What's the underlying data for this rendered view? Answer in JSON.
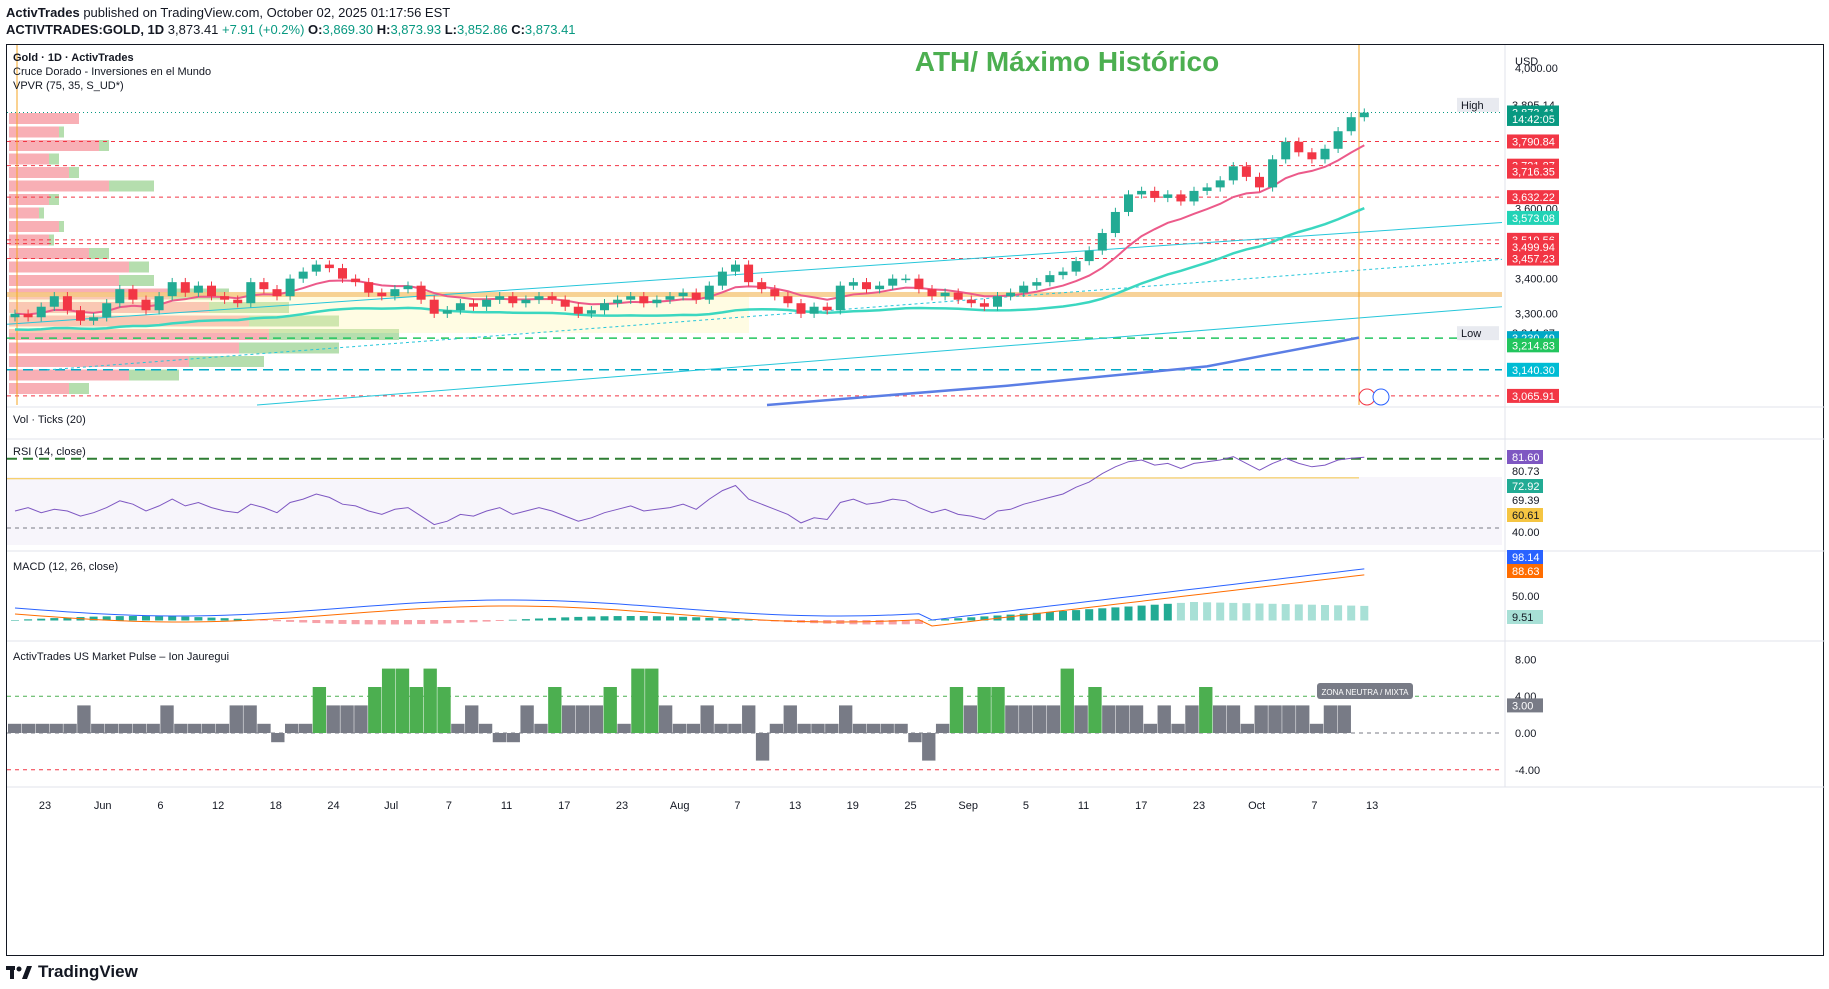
{
  "header": {
    "publisher": "ActivTrades",
    "published_text": "published on TradingView.com, October 02, 2025 01:17:56 EST",
    "symbol": "ACTIVTRADES:GOLD, 1D",
    "price": "3,873.41",
    "change": "+7.91 (+0.2%)",
    "o_label": "O:",
    "o_val": "3,869.30",
    "h_label": "H:",
    "h_val": "3,873.93",
    "l_label": "L:",
    "l_val": "3,852.86",
    "c_label": "C:",
    "c_val": "3,873.41"
  },
  "legend": {
    "line1": "Gold · 1D · ActivTrades",
    "line2": "Cruce Dorado - Inversiones en el Mundo",
    "line3": "VPVR (75, 35, S_UD*)",
    "vol": "Vol · Ticks (20)",
    "rsi": "RSI (14, close)",
    "macd": "MACD (12, 26, close)",
    "pulse": "ActivTrades US Market Pulse – Ion Jauregui"
  },
  "annotation": {
    "ath": "ATH/ Máximo Histórico",
    "zone": "ZONA NEUTRA / MIXTA"
  },
  "footer": {
    "logo_text": "TradingView"
  },
  "colors": {
    "up": "#22ab94",
    "down": "#f23645",
    "ema_pink": "#ec5a8a",
    "ema_teal": "#3bd7c0",
    "sma_blue": "#5b7ee5",
    "rsi": "#7e57c2",
    "macd_line": "#2962ff",
    "signal": "#ff6d00",
    "pulse_gray": "#787b86",
    "pulse_green": "#4caf50",
    "ath_text": "#4caf50"
  },
  "chart_data": [
    {
      "type": "candlestick",
      "title": "Gold · 1D · ActivTrades",
      "currency": "USD",
      "y_axis_ticks": [
        4000,
        3600,
        3400,
        3300
      ],
      "ylim": [
        3040,
        4060
      ],
      "x_tick_labels": [
        "23",
        "Jun",
        "6",
        "12",
        "18",
        "24",
        "Jul",
        "7",
        "11",
        "17",
        "23",
        "Aug",
        "7",
        "13",
        "19",
        "25",
        "Sep",
        "5",
        "11",
        "17",
        "23",
        "Oct",
        "7",
        "13"
      ],
      "price_labels": [
        {
          "label": "High",
          "value": "3,895.14"
        },
        {
          "label": "",
          "value": "3,873.41"
        },
        {
          "label": "",
          "value": "14:42:05"
        },
        {
          "label": "",
          "value": "3,790.84"
        },
        {
          "label": "",
          "value": "3,721.87"
        },
        {
          "label": "",
          "value": "3,716.35"
        },
        {
          "label": "",
          "value": "3,632.22"
        },
        {
          "label": "",
          "value": "3,573.08"
        },
        {
          "label": "",
          "value": "3,510.56"
        },
        {
          "label": "",
          "value": "3,499.94"
        },
        {
          "label": "",
          "value": "3,457.23"
        },
        {
          "label": "Low",
          "value": "3,244.67"
        },
        {
          "label": "",
          "value": "3,230.49"
        },
        {
          "label": "",
          "value": "3,214.83"
        },
        {
          "label": "",
          "value": "3,140.30"
        },
        {
          "label": "",
          "value": "3,065.91"
        }
      ],
      "closes": [
        3300,
        3290,
        3320,
        3350,
        3310,
        3280,
        3290,
        3330,
        3370,
        3340,
        3310,
        3350,
        3390,
        3360,
        3380,
        3350,
        3340,
        3330,
        3390,
        3370,
        3350,
        3400,
        3420,
        3440,
        3430,
        3400,
        3390,
        3360,
        3350,
        3370,
        3380,
        3340,
        3300,
        3310,
        3330,
        3320,
        3340,
        3350,
        3330,
        3340,
        3350,
        3340,
        3320,
        3300,
        3310,
        3330,
        3340,
        3350,
        3330,
        3340,
        3350,
        3360,
        3340,
        3380,
        3420,
        3440,
        3390,
        3370,
        3350,
        3330,
        3300,
        3320,
        3310,
        3380,
        3390,
        3370,
        3380,
        3400,
        3400,
        3370,
        3350,
        3360,
        3340,
        3330,
        3320,
        3350,
        3360,
        3380,
        3390,
        3410,
        3420,
        3450,
        3480,
        3530,
        3590,
        3640,
        3650,
        3630,
        3640,
        3620,
        3650,
        3660,
        3680,
        3720,
        3690,
        3660,
        3740,
        3790,
        3760,
        3740,
        3770,
        3820,
        3860,
        3873
      ]
    },
    {
      "type": "line",
      "title": "RSI (14, close)",
      "y_axis_ticks": [
        80.73,
        69.39,
        40.0
      ],
      "current_labels": [
        "81.60",
        "72.92",
        "60.61"
      ],
      "values": [
        50,
        52,
        49,
        51,
        50,
        47,
        49,
        52,
        56,
        54,
        50,
        53,
        57,
        53,
        55,
        52,
        50,
        49,
        54,
        52,
        49,
        55,
        57,
        60,
        58,
        54,
        53,
        50,
        48,
        51,
        52,
        47,
        42,
        44,
        48,
        47,
        50,
        52,
        48,
        50,
        52,
        50,
        47,
        44,
        46,
        49,
        51,
        53,
        50,
        51,
        52,
        54,
        51,
        57,
        62,
        65,
        57,
        54,
        51,
        48,
        43,
        46,
        45,
        55,
        57,
        54,
        55,
        57,
        56,
        52,
        49,
        51,
        48,
        47,
        45,
        50,
        51,
        54,
        56,
        58,
        60,
        64,
        67,
        72,
        76,
        79,
        80,
        77,
        78,
        75,
        78,
        79,
        80,
        82,
        78,
        74,
        78,
        81,
        78,
        76,
        77,
        80,
        81,
        81.6
      ]
    },
    {
      "type": "line",
      "title": "MACD (12, 26, close)",
      "y_axis_ticks": [
        50.0
      ],
      "current_labels": [
        "98.14",
        "88.63",
        "9.51"
      ]
    },
    {
      "type": "bar",
      "title": "ActivTrades US Market Pulse – Ion Jauregui",
      "y_axis_ticks": [
        8.0,
        4.0,
        0.0,
        -4.0
      ],
      "current_label": "3.00",
      "values": [
        1,
        1,
        1,
        1,
        1,
        3,
        1,
        1,
        1,
        1,
        1,
        3,
        1,
        1,
        1,
        1,
        3,
        3,
        1,
        -1,
        1,
        1,
        5,
        3,
        3,
        3,
        5,
        7,
        7,
        5,
        7,
        5,
        1,
        3,
        1,
        -1,
        -1,
        3,
        1,
        5,
        3,
        3,
        3,
        5,
        1,
        7,
        7,
        3,
        1,
        1,
        3,
        1,
        1,
        3,
        -3,
        1,
        3,
        1,
        1,
        1,
        3,
        1,
        1,
        1,
        1,
        -1,
        -3,
        1,
        5,
        3,
        5,
        5,
        3,
        3,
        3,
        3,
        7,
        3,
        5,
        3,
        3,
        3,
        1,
        3,
        1,
        3,
        5,
        3,
        3,
        1,
        3,
        3,
        3,
        3,
        1,
        3,
        3
      ]
    }
  ]
}
